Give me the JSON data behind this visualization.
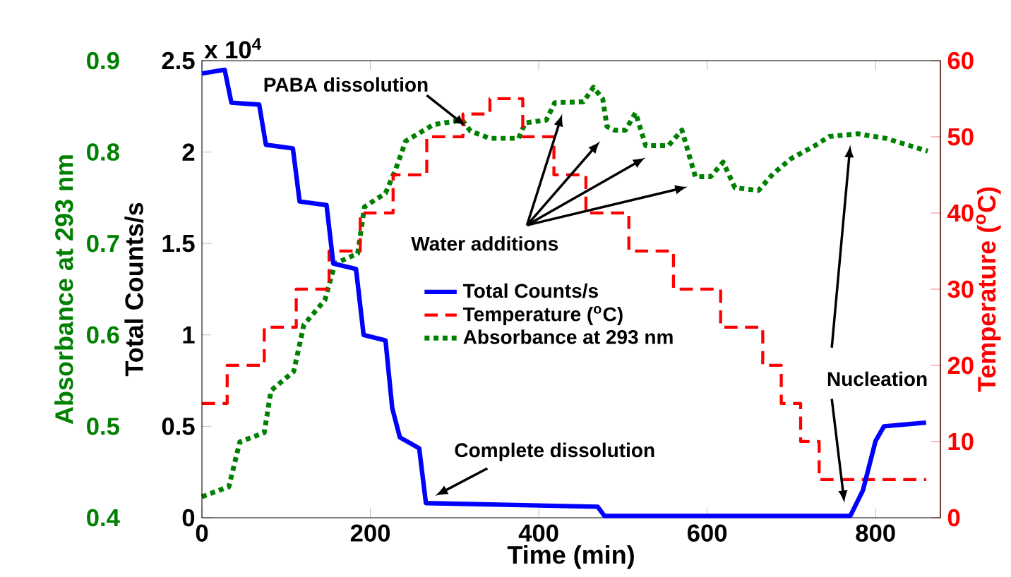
{
  "chart_data": {
    "type": "line",
    "xlabel": "Time (min)",
    "ylabel": "Total Counts/s",
    "y2label": "Temperature ($^{o}$C)",
    "y3label": "Absorbance at 293 nm",
    "xlim": [
      0,
      877
    ],
    "xticks": [
      0,
      200,
      400,
      600,
      800
    ],
    "ylim": [
      0,
      2.5
    ],
    "yticks": [
      0,
      0.5,
      1,
      1.5,
      2,
      2.5
    ],
    "y2lim": [
      0,
      60
    ],
    "y2ticks": [
      0,
      10,
      20,
      30,
      40,
      50,
      60
    ],
    "y3lim": [
      0.4,
      0.9
    ],
    "y3ticks": [
      0.4,
      0.5,
      0.6,
      0.7,
      0.8,
      0.9
    ],
    "legend": "center",
    "series": [
      {
        "name": "Total Counts/s",
        "color": "#0000ff",
        "line_style": "solid",
        "x": [
          0,
          27,
          35,
          68,
          76,
          108,
          116,
          148,
          156,
          183,
          192,
          218,
          226,
          235,
          258,
          266,
          470,
          478,
          770,
          785,
          800,
          810,
          860
        ],
        "values": [
          2.43,
          2.45,
          2.27,
          2.26,
          2.04,
          2.02,
          1.73,
          1.71,
          1.39,
          1.36,
          1.0,
          0.97,
          0.6,
          0.44,
          0.38,
          0.08,
          0.06,
          0.01,
          0.01,
          0.15,
          0.42,
          0.5,
          0.52
        ]
      },
      {
        "name": "Temperature ($^{o}$C)",
        "type": "step",
        "axis": "y2",
        "color": "#ff0000",
        "line_style": "dashed",
        "x": [
          0,
          30,
          74,
          112,
          151,
          188,
          227,
          267,
          310,
          342,
          381,
          418,
          456,
          507,
          560,
          616,
          666,
          688,
          711,
          733,
          860
        ],
        "values": [
          15,
          20,
          25,
          30,
          35,
          40,
          45,
          50,
          53,
          55,
          50,
          45,
          40,
          35,
          30,
          25,
          20,
          15,
          10,
          5,
          5
        ]
      },
      {
        "name": "Absorbance at 293 nm",
        "type": "line",
        "axis": "y3",
        "color": "#008000",
        "line_style": "dotted",
        "x": [
          0,
          32,
          45,
          74,
          82,
          109,
          121,
          146,
          158,
          185,
          193,
          218,
          230,
          242,
          275,
          309,
          319,
          342,
          376,
          384,
          409,
          419,
          453,
          465,
          476,
          481,
          490,
          503,
          515,
          527,
          554,
          570,
          586,
          604,
          619,
          633,
          661,
          678,
          700,
          728,
          745,
          779,
          812,
          862
        ],
        "values": [
          0.423,
          0.434,
          0.483,
          0.493,
          0.539,
          0.56,
          0.611,
          0.638,
          0.678,
          0.689,
          0.74,
          0.755,
          0.781,
          0.812,
          0.83,
          0.835,
          0.823,
          0.815,
          0.815,
          0.832,
          0.835,
          0.854,
          0.855,
          0.871,
          0.858,
          0.828,
          0.824,
          0.824,
          0.843,
          0.807,
          0.807,
          0.824,
          0.773,
          0.773,
          0.789,
          0.761,
          0.758,
          0.776,
          0.793,
          0.807,
          0.817,
          0.82,
          0.815,
          0.801
        ]
      }
    ],
    "annotations": [
      "x 10$^{4}$",
      {
        "text": "PABA dissolution",
        "x": 314,
        "y": 2.14
      },
      "Water additions",
      {
        "text": "Complete dissolution",
        "x": 277,
        "y": 0.12
      },
      "Nucleation"
    ]
  }
}
